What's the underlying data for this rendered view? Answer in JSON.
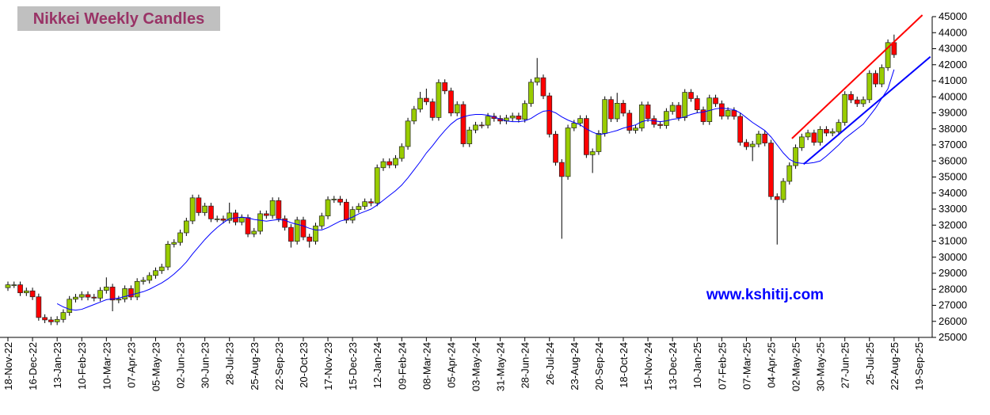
{
  "chart_data": {
    "type": "candlestick",
    "title": "Nikkei Weekly Candles",
    "annotation": "www.kshitij.com",
    "categories": [
      "18-Nov-22",
      null,
      null,
      null,
      "16-Dec-22",
      null,
      null,
      null,
      "13-Jan-23",
      null,
      null,
      null,
      "10-Feb-23",
      null,
      null,
      null,
      "10-Mar-23",
      null,
      null,
      null,
      "07-Apr-23",
      null,
      null,
      null,
      "05-May-23",
      null,
      null,
      null,
      "02-Jun-23",
      null,
      null,
      null,
      "30-Jun-23",
      null,
      null,
      null,
      "28-Jul-23",
      null,
      null,
      null,
      "25-Aug-23",
      null,
      null,
      null,
      "22-Sep-23",
      null,
      null,
      null,
      "20-Oct-23",
      null,
      null,
      null,
      "17-Nov-23",
      null,
      null,
      null,
      "15-Dec-23",
      null,
      null,
      null,
      "12-Jan-24",
      null,
      null,
      null,
      "09-Feb-24",
      null,
      null,
      null,
      "08-Mar-24",
      null,
      null,
      null,
      "05-Apr-24",
      null,
      null,
      null,
      "03-May-24",
      null,
      null,
      null,
      "31-May-24",
      null,
      null,
      null,
      "28-Jun-24",
      null,
      null,
      null,
      "26-Jul-24",
      null,
      null,
      null,
      "23-Aug-24",
      null,
      null,
      null,
      "20-Sep-24",
      null,
      null,
      null,
      "18-Oct-24",
      null,
      null,
      null,
      "15-Nov-24",
      null,
      null,
      null,
      "13-Dec-24",
      null,
      null,
      null,
      "10-Jan-25",
      null,
      null,
      null,
      "07-Feb-25",
      null,
      null,
      null,
      "07-Mar-25",
      null,
      null,
      null,
      "04-Apr-25",
      null,
      null,
      null,
      "02-May-25",
      null,
      null,
      null,
      "30-May-25",
      null,
      null,
      null,
      "27-Jun-25",
      null,
      null,
      null,
      "25-Jul-25",
      null,
      null,
      null,
      "22-Aug-25",
      null,
      null,
      null,
      "19-Sep-25"
    ],
    "open": [
      28100,
      28280,
      28280,
      27780,
      27900,
      27530,
      26240,
      26090,
      25970,
      26120,
      26550,
      27380,
      27510,
      27670,
      27510,
      27450,
      27930,
      28140,
      27330,
      27390,
      28040,
      27520,
      28490,
      28560,
      28860,
      29160,
      29390,
      30810,
      30920,
      31520,
      32260,
      33700,
      32780,
      33190,
      32390,
      32390,
      32300,
      32760,
      32190,
      32470,
      31450,
      31620,
      32710,
      32600,
      33530,
      32400,
      31860,
      30990,
      32320,
      31260,
      30990,
      31950,
      32570,
      33590,
      33620,
      33430,
      32310,
      32970,
      33170,
      33460,
      33380,
      35580,
      35960,
      35750,
      36160,
      36900,
      38490,
      39230,
      39910,
      39690,
      38710,
      40890,
      40370,
      38990,
      39520,
      37070,
      37930,
      38240,
      38230,
      38790,
      38650,
      38490,
      38680,
      38810,
      38600,
      39580,
      40910,
      41190,
      40060,
      37670,
      35910,
      35030,
      38060,
      38360,
      38650,
      36390,
      36580,
      37720,
      39830,
      38630,
      39600,
      38980,
      37910,
      38050,
      39500,
      38640,
      38280,
      38210,
      39090,
      39470,
      38700,
      40280,
      39890,
      39190,
      38450,
      39930,
      39570,
      38790,
      39150,
      38780,
      37160,
      36890,
      37050,
      37680,
      37120,
      33780,
      33590,
      34730,
      35710,
      36830,
      37500,
      37750,
      37160,
      37970,
      37740,
      37830,
      38400,
      40150,
      39810,
      39570,
      39820,
      41460,
      40800,
      41820,
      43380,
      null,
      null,
      null,
      null
    ],
    "high": [
      28480,
      28480,
      28480,
      28100,
      28100,
      27730,
      26440,
      26290,
      26320,
      26750,
      27580,
      27710,
      27870,
      27870,
      27710,
      28130,
      28740,
      28340,
      27590,
      28240,
      28240,
      28690,
      28760,
      29060,
      29360,
      29590,
      31010,
      31120,
      31720,
      32460,
      33900,
      33900,
      33390,
      33390,
      32590,
      32590,
      33400,
      32960,
      32670,
      32670,
      31820,
      32910,
      32910,
      33730,
      33730,
      32600,
      32060,
      32520,
      32520,
      31460,
      32150,
      32770,
      33790,
      33820,
      33820,
      33630,
      33170,
      33370,
      33660,
      33660,
      35780,
      36160,
      36160,
      36360,
      37100,
      38690,
      39430,
      40310,
      40510,
      39890,
      41090,
      41090,
      40570,
      39720,
      39720,
      38130,
      38440,
      38440,
      38990,
      38990,
      38850,
      38880,
      39010,
      39010,
      39780,
      41110,
      42420,
      41390,
      40260,
      37870,
      36110,
      38260,
      38560,
      38850,
      38850,
      36780,
      37920,
      40030,
      40030,
      40250,
      39800,
      39180,
      38250,
      39700,
      39700,
      38840,
      38480,
      39290,
      39670,
      39670,
      40480,
      40480,
      40090,
      39390,
      40130,
      40130,
      39770,
      39350,
      39350,
      38980,
      37360,
      37250,
      37880,
      37880,
      37320,
      33980,
      34930,
      35910,
      37030,
      37700,
      37950,
      37950,
      38170,
      38170,
      38030,
      38600,
      40350,
      40350,
      40010,
      40020,
      41660,
      41660,
      42020,
      43580,
      43880,
      null,
      null,
      null,
      null
    ],
    "low": [
      27900,
      28080,
      27580,
      27580,
      27330,
      26040,
      25890,
      25770,
      25770,
      25920,
      26350,
      27180,
      27310,
      27310,
      27250,
      27250,
      27730,
      26630,
      27130,
      27190,
      27320,
      27320,
      28290,
      28360,
      28660,
      28960,
      29190,
      30610,
      30720,
      31320,
      32060,
      32580,
      32580,
      32190,
      32190,
      32100,
      32100,
      31990,
      31990,
      31250,
      31250,
      31420,
      32400,
      32400,
      32200,
      31660,
      30600,
      30790,
      31060,
      30600,
      30790,
      31750,
      32370,
      33390,
      33230,
      32110,
      32110,
      32770,
      32970,
      33180,
      33180,
      35380,
      35550,
      35550,
      35960,
      36700,
      38290,
      39030,
      39490,
      38510,
      38510,
      40170,
      38790,
      38790,
      36870,
      36870,
      37730,
      38030,
      38030,
      38450,
      38290,
      38290,
      38480,
      38400,
      38400,
      39380,
      40710,
      39860,
      37470,
      35710,
      31150,
      34830,
      37860,
      38160,
      36190,
      35250,
      36380,
      37520,
      38430,
      38430,
      38780,
      37710,
      37710,
      37850,
      38440,
      38080,
      38010,
      38010,
      38890,
      38500,
      38500,
      39690,
      38990,
      38250,
      38250,
      39370,
      38590,
      38590,
      38580,
      36960,
      36690,
      35990,
      36850,
      36920,
      33580,
      30790,
      33390,
      34530,
      35510,
      36630,
      37300,
      36960,
      36960,
      37540,
      37540,
      37630,
      38200,
      39610,
      39370,
      39370,
      39620,
      40600,
      40600,
      41620,
      42430,
      null,
      null,
      null,
      null
    ],
    "close": [
      28280,
      28280,
      27780,
      27900,
      27530,
      26240,
      26090,
      25970,
      26120,
      26550,
      27380,
      27510,
      27670,
      27510,
      27450,
      27930,
      28140,
      27330,
      27390,
      28040,
      27520,
      28490,
      28560,
      28860,
      29160,
      29390,
      30810,
      30920,
      31520,
      32260,
      33700,
      32780,
      33190,
      32390,
      32390,
      32300,
      32760,
      32190,
      32470,
      31450,
      31620,
      32710,
      32600,
      33530,
      32400,
      31860,
      30990,
      32320,
      31260,
      30990,
      31950,
      32570,
      33590,
      33620,
      33430,
      32310,
      32970,
      33170,
      33460,
      33380,
      35580,
      35960,
      35750,
      36160,
      36900,
      38490,
      39230,
      39910,
      39690,
      38710,
      40890,
      40370,
      38990,
      39520,
      37070,
      37930,
      38240,
      38230,
      38790,
      38650,
      38490,
      38680,
      38810,
      38600,
      39580,
      40910,
      41190,
      40060,
      37670,
      35910,
      35030,
      38060,
      38360,
      38650,
      36390,
      36580,
      37720,
      39830,
      38630,
      39600,
      38980,
      37910,
      38050,
      39500,
      38640,
      38280,
      38210,
      39090,
      39470,
      38700,
      40280,
      39890,
      39190,
      38450,
      39930,
      39570,
      38790,
      39150,
      38780,
      37160,
      36890,
      37050,
      37680,
      37120,
      33780,
      33590,
      34730,
      35710,
      36830,
      37500,
      37750,
      37160,
      37970,
      37740,
      37830,
      38400,
      40150,
      39810,
      39570,
      39820,
      41460,
      40800,
      41820,
      43380,
      42630,
      null,
      null,
      null,
      null
    ],
    "moving_average": [
      null,
      null,
      null,
      null,
      null,
      null,
      null,
      null,
      27100,
      26900,
      26750,
      26700,
      26750,
      26900,
      27050,
      27200,
      27350,
      27400,
      27450,
      27550,
      27650,
      27750,
      27850,
      28000,
      28200,
      28400,
      28650,
      28950,
      29300,
      29700,
      30200,
      30650,
      31100,
      31500,
      31850,
      32150,
      32400,
      32450,
      32500,
      32450,
      32350,
      32300,
      32250,
      32300,
      32350,
      32300,
      32150,
      32050,
      31950,
      31800,
      31700,
      31700,
      31850,
      32050,
      32250,
      32350,
      32500,
      32700,
      32850,
      33000,
      33250,
      33550,
      33850,
      34150,
      34500,
      34950,
      35450,
      35950,
      36500,
      36950,
      37450,
      37900,
      38300,
      38600,
      38750,
      38850,
      38900,
      38900,
      38850,
      38750,
      38600,
      38500,
      38450,
      38450,
      38500,
      38650,
      38900,
      39100,
      39150,
      39000,
      38750,
      38550,
      38400,
      38250,
      38000,
      37800,
      37650,
      37700,
      37800,
      37900,
      38050,
      38150,
      38250,
      38450,
      38550,
      38500,
      38450,
      38500,
      38600,
      38650,
      38750,
      38900,
      39000,
      39050,
      39150,
      39250,
      39300,
      39250,
      39200,
      39000,
      38700,
      38400,
      38150,
      37900,
      37500,
      37000,
      36500,
      36100,
      35900,
      35850,
      35850,
      35900,
      36000,
      36300,
      36650,
      37000,
      37400,
      37700,
      38000,
      38300,
      38800,
      39300,
      39900,
      40500,
      41700,
      null,
      null,
      null,
      null
    ],
    "up_color": "#99cc00",
    "down_color": "#ff0000",
    "ma_color": "#0000ff",
    "trendlines": [
      {
        "color": "#ff0000",
        "x": [
          127.4,
          148.6
        ],
        "y": [
          37400,
          45100
        ]
      },
      {
        "color": "#0000ff",
        "x": [
          129.3,
          149.9
        ],
        "y": [
          35800,
          42500
        ]
      }
    ],
    "ylim": [
      25000,
      45000
    ],
    "yticks": [
      25000,
      26000,
      27000,
      28000,
      29000,
      30000,
      31000,
      32000,
      33000,
      34000,
      35000,
      36000,
      37000,
      38000,
      39000,
      40000,
      41000,
      42000,
      43000,
      44000,
      45000
    ]
  }
}
